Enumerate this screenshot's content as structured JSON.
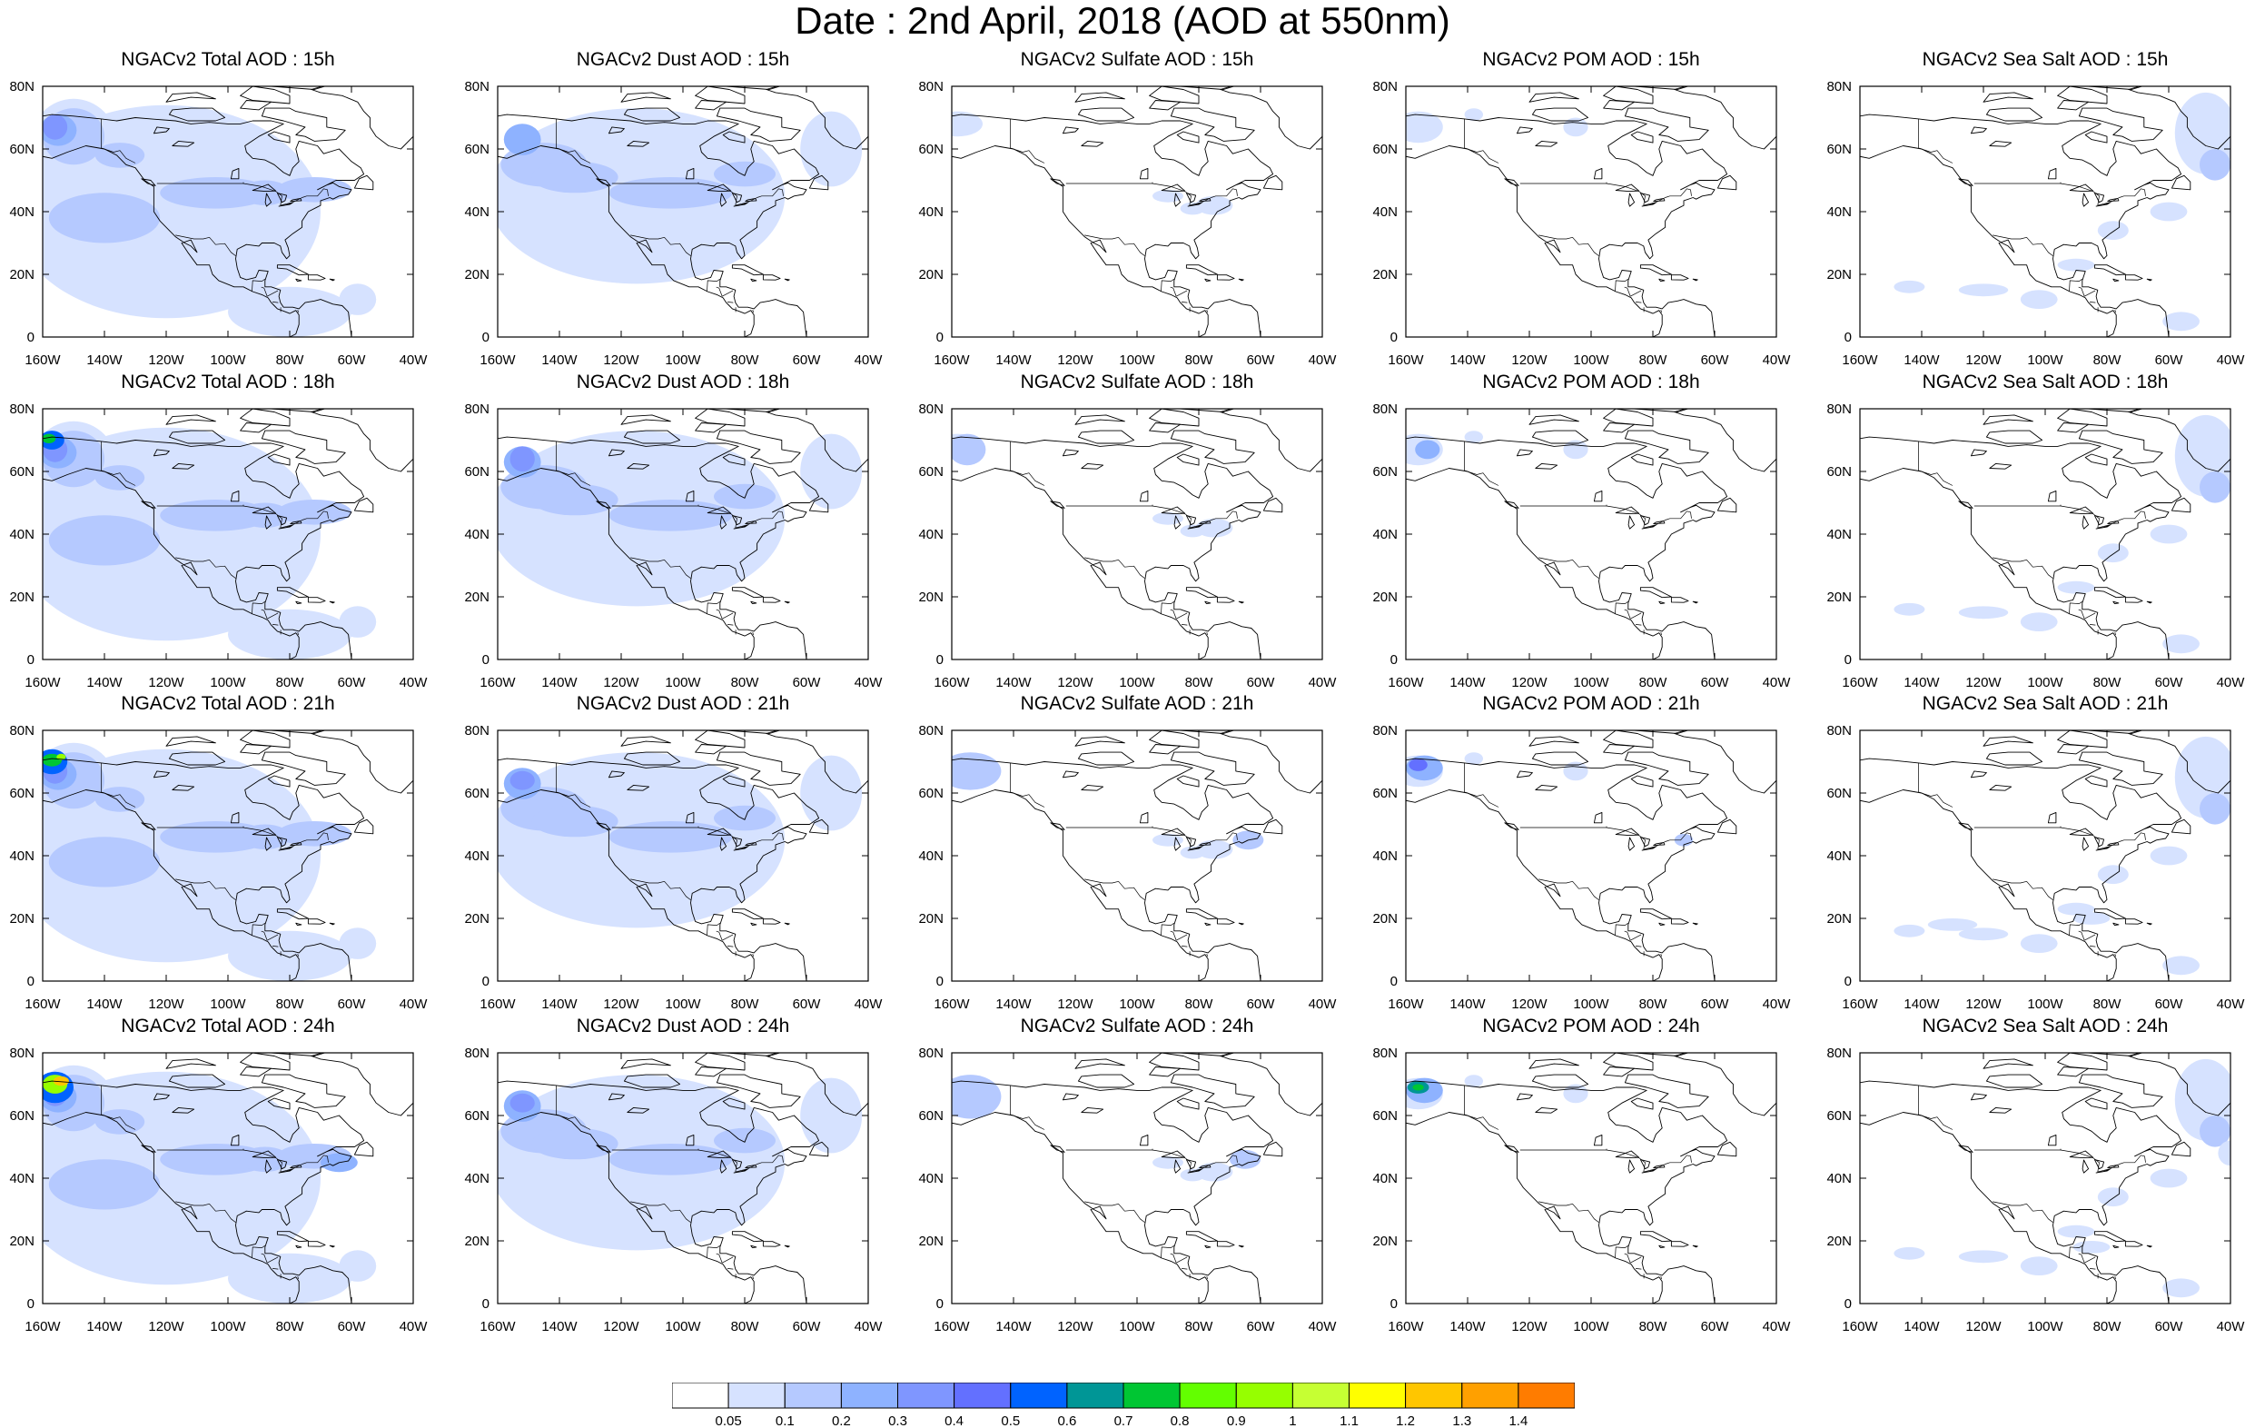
{
  "title": "Date : 2nd April, 2018 (AOD at 550nm)",
  "map": {
    "lon_range": [
      -160,
      -40
    ],
    "lat_range": [
      0,
      80
    ],
    "x_ticks": [
      {
        "value": -160,
        "label": "160W"
      },
      {
        "value": -140,
        "label": "140W"
      },
      {
        "value": -120,
        "label": "120W"
      },
      {
        "value": -100,
        "label": "100W"
      },
      {
        "value": -80,
        "label": "80W"
      },
      {
        "value": -60,
        "label": "60W"
      },
      {
        "value": -40,
        "label": "40W"
      }
    ],
    "y_ticks": [
      {
        "value": 80,
        "label": "80N"
      },
      {
        "value": 60,
        "label": "60N"
      },
      {
        "value": 40,
        "label": "40N"
      },
      {
        "value": 20,
        "label": "20N"
      },
      {
        "value": 0,
        "label": "0"
      }
    ]
  },
  "colors": {
    "coast": "#000000",
    "levels": [
      "#ffffff",
      "#d6e2ff",
      "#b5c9ff",
      "#8eb2ff",
      "#7f96ff",
      "#6370ff",
      "#0063ff",
      "#009696",
      "#00c633",
      "#63ff00",
      "#96ff00",
      "#c6ff33",
      "#ffff00",
      "#ffc600",
      "#ffa000",
      "#ff7c00",
      "#ff1900"
    ]
  },
  "colorbar": {
    "labels": [
      "0.05",
      "0.1",
      "0.2",
      "0.3",
      "0.4",
      "0.5",
      "0.6",
      "0.7",
      "0.8",
      "0.9",
      "1",
      "1.1",
      "1.2",
      "1.3",
      "1.4"
    ]
  },
  "panels": [
    {
      "title": "NGACv2 Total AOD : 15h",
      "species": "total",
      "hour": 15
    },
    {
      "title": "NGACv2 Dust AOD : 15h",
      "species": "dust",
      "hour": 15
    },
    {
      "title": "NGACv2 Sulfate AOD : 15h",
      "species": "sulfate",
      "hour": 15
    },
    {
      "title": "NGACv2 POM AOD : 15h",
      "species": "pom",
      "hour": 15
    },
    {
      "title": "NGACv2 Sea Salt AOD : 15h",
      "species": "seasalt",
      "hour": 15
    },
    {
      "title": "NGACv2 Total AOD : 18h",
      "species": "total",
      "hour": 18
    },
    {
      "title": "NGACv2 Dust AOD : 18h",
      "species": "dust",
      "hour": 18
    },
    {
      "title": "NGACv2 Sulfate AOD : 18h",
      "species": "sulfate",
      "hour": 18
    },
    {
      "title": "NGACv2 POM AOD : 18h",
      "species": "pom",
      "hour": 18
    },
    {
      "title": "NGACv2 Sea Salt AOD : 18h",
      "species": "seasalt",
      "hour": 18
    },
    {
      "title": "NGACv2 Total AOD : 21h",
      "species": "total",
      "hour": 21
    },
    {
      "title": "NGACv2 Dust AOD : 21h",
      "species": "dust",
      "hour": 21
    },
    {
      "title": "NGACv2 Sulfate AOD : 21h",
      "species": "sulfate",
      "hour": 21
    },
    {
      "title": "NGACv2 POM AOD : 21h",
      "species": "pom",
      "hour": 21
    },
    {
      "title": "NGACv2 Sea Salt AOD : 21h",
      "species": "seasalt",
      "hour": 21
    },
    {
      "title": "NGACv2 Total AOD : 24h",
      "species": "total",
      "hour": 24
    },
    {
      "title": "NGACv2 Dust AOD : 24h",
      "species": "dust",
      "hour": 24
    },
    {
      "title": "NGACv2 Sulfate AOD : 24h",
      "species": "sulfate",
      "hour": 24
    },
    {
      "title": "NGACv2 POM AOD : 24h",
      "species": "pom",
      "hour": 24
    },
    {
      "title": "NGACv2 Sea Salt  AOD : 24h",
      "species": "seasalt",
      "hour": 24
    }
  ]
}
